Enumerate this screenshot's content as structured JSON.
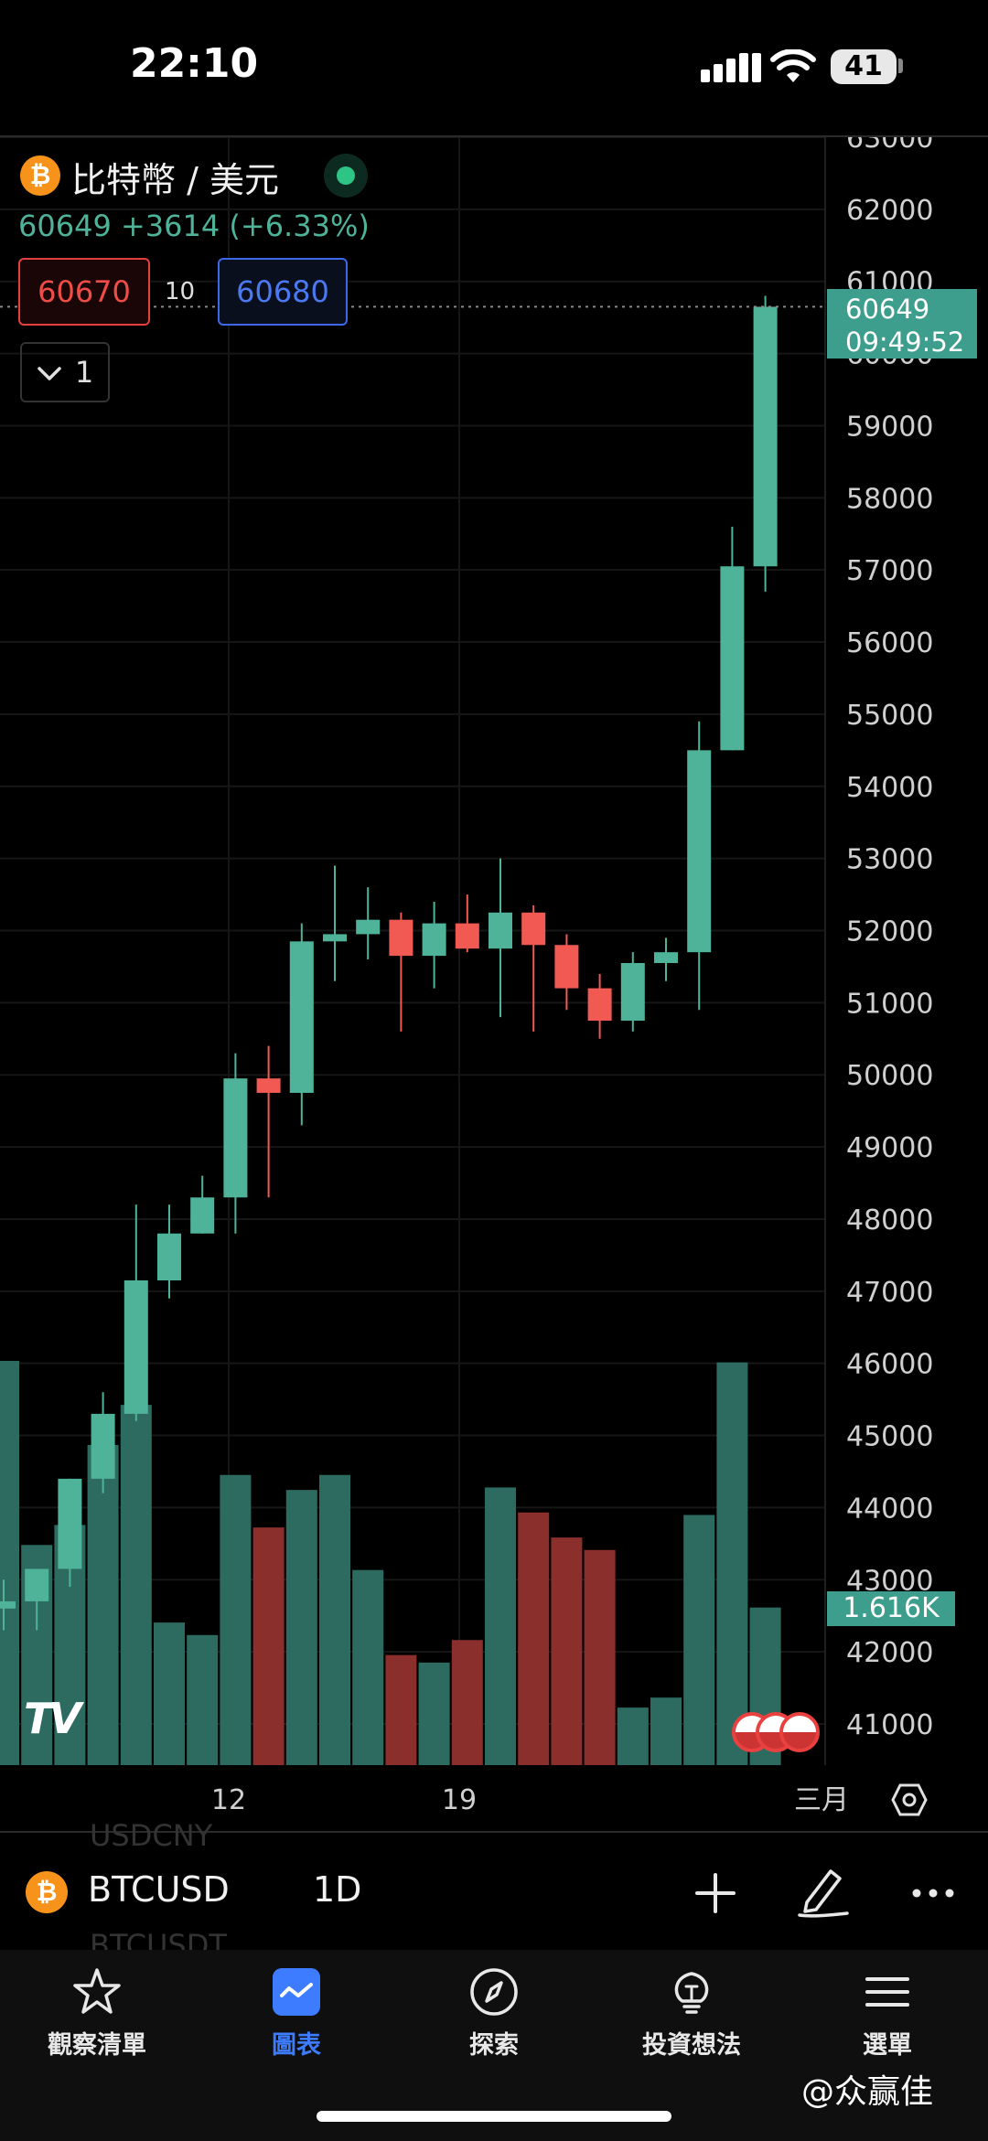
{
  "status_bar": {
    "time": "22:10",
    "battery": "41"
  },
  "symbol_header": {
    "icon_glyph": "₿",
    "title": "比特幣 / 美元",
    "last_price": "60649",
    "change": "+3614",
    "change_pct": "(+6.33%)",
    "bid": "60670",
    "spread": "10",
    "ask": "60680",
    "indicator_toggle": "1"
  },
  "price_scale": {
    "ticks": [
      "63000",
      "62000",
      "61000",
      "60000",
      "59000",
      "58000",
      "57000",
      "56000",
      "55000",
      "54000",
      "53000",
      "52000",
      "51000",
      "50000",
      "49000",
      "48000",
      "47000",
      "46000",
      "45000",
      "44000",
      "43000",
      "42000",
      "41000"
    ],
    "last_price_badge": "60649",
    "countdown": "09:49:52",
    "volume_badge": "1.616K"
  },
  "date_axis": {
    "labels": [
      "12",
      "19",
      "三月"
    ]
  },
  "chart_logo": "TV",
  "toolbar": {
    "icon_glyph": "₿",
    "symbol": "BTCUSD",
    "interval": "1D",
    "ghost_above": "USDCNY",
    "ghost_below": "BTCUSDT"
  },
  "tabs": [
    {
      "label": "觀察清單",
      "icon": "star-icon"
    },
    {
      "label": "圖表",
      "icon": "chart-icon"
    },
    {
      "label": "探索",
      "icon": "compass-icon"
    },
    {
      "label": "投資想法",
      "icon": "lightbulb-icon"
    },
    {
      "label": "選單",
      "icon": "menu-icon"
    }
  ],
  "watermark": "@众赢佳",
  "colors": {
    "up": "#4fb39a",
    "down": "#f05a52",
    "accent": "#3d7bff",
    "badge": "#3d9e8e"
  },
  "chart_data": {
    "type": "candlestick",
    "ylim": [
      40500,
      63300
    ],
    "volume_max": 1.616,
    "candles": [
      {
        "o": 42600,
        "h": 43000,
        "l": 42300,
        "c": 42700,
        "v": 1.616,
        "up": true
      },
      {
        "o": 42700,
        "h": 43100,
        "l": 42300,
        "c": 43150,
        "v": 0.88,
        "up": true
      },
      {
        "o": 43150,
        "h": 44400,
        "l": 42900,
        "c": 44400,
        "v": 0.96,
        "up": true
      },
      {
        "o": 44400,
        "h": 45600,
        "l": 44200,
        "c": 45300,
        "v": 1.28,
        "up": true
      },
      {
        "o": 45300,
        "h": 48200,
        "l": 45200,
        "c": 47150,
        "v": 1.44,
        "up": true
      },
      {
        "o": 47150,
        "h": 48200,
        "l": 46900,
        "c": 47800,
        "v": 0.57,
        "up": true
      },
      {
        "o": 47800,
        "h": 48600,
        "l": 47800,
        "c": 48300,
        "v": 0.52,
        "up": true
      },
      {
        "o": 48300,
        "h": 50300,
        "l": 47800,
        "c": 49950,
        "v": 1.16,
        "up": true
      },
      {
        "o": 49950,
        "h": 50400,
        "l": 48300,
        "c": 49750,
        "v": 0.95,
        "up": false
      },
      {
        "o": 49750,
        "h": 52100,
        "l": 49300,
        "c": 51850,
        "v": 1.1,
        "up": true
      },
      {
        "o": 51850,
        "h": 52900,
        "l": 51300,
        "c": 51950,
        "v": 1.16,
        "up": true
      },
      {
        "o": 51950,
        "h": 52600,
        "l": 51600,
        "c": 52150,
        "v": 0.78,
        "up": true
      },
      {
        "o": 52150,
        "h": 52250,
        "l": 50600,
        "c": 51650,
        "v": 0.44,
        "up": false
      },
      {
        "o": 51650,
        "h": 52400,
        "l": 51200,
        "c": 52100,
        "v": 0.41,
        "up": true
      },
      {
        "o": 52100,
        "h": 52500,
        "l": 51700,
        "c": 51750,
        "v": 0.5,
        "up": false
      },
      {
        "o": 51750,
        "h": 53000,
        "l": 50800,
        "c": 52250,
        "v": 1.11,
        "up": true
      },
      {
        "o": 52250,
        "h": 52350,
        "l": 50600,
        "c": 51800,
        "v": 1.01,
        "up": false
      },
      {
        "o": 51800,
        "h": 51950,
        "l": 50900,
        "c": 51200,
        "v": 0.91,
        "up": false
      },
      {
        "o": 51200,
        "h": 51400,
        "l": 50500,
        "c": 50750,
        "v": 0.86,
        "up": false
      },
      {
        "o": 50750,
        "h": 51700,
        "l": 50600,
        "c": 51550,
        "v": 0.23,
        "up": true
      },
      {
        "o": 51550,
        "h": 51900,
        "l": 51300,
        "c": 51700,
        "v": 0.27,
        "up": true
      },
      {
        "o": 51700,
        "h": 54900,
        "l": 50900,
        "c": 54500,
        "v": 1.0,
        "up": true
      },
      {
        "o": 54500,
        "h": 57600,
        "l": 54500,
        "c": 57050,
        "v": 1.61,
        "up": true
      },
      {
        "o": 57050,
        "h": 60800,
        "l": 56700,
        "c": 60649,
        "v": 0.63,
        "up": true
      }
    ]
  }
}
